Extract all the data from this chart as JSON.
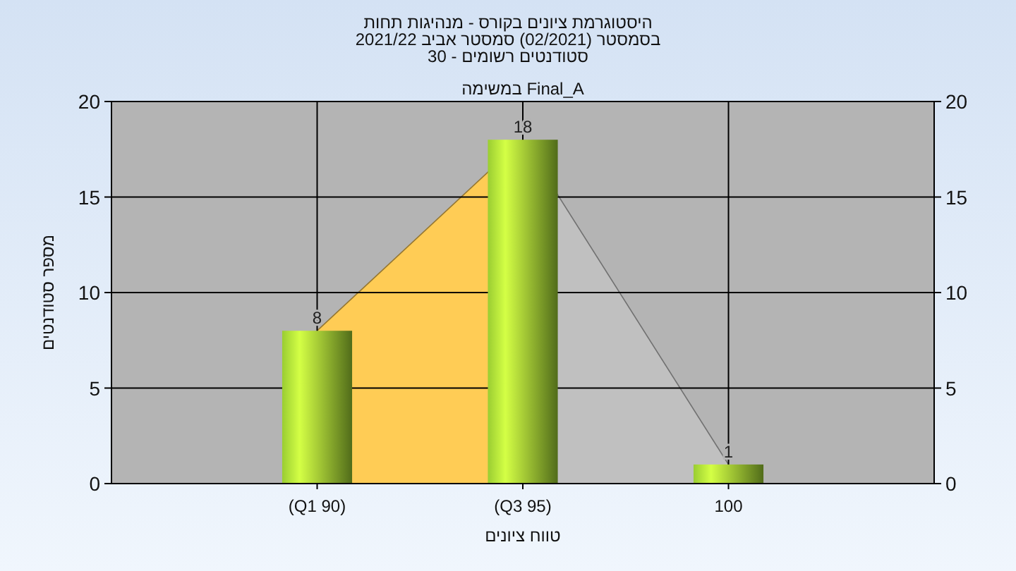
{
  "chart_data": {
    "type": "bar",
    "title": "היסטוגרמת ציונים בקורס - מנהיגות תחות\nבסמסטר  (02/2021)  סמסטר אביב 2021/22\nסטודנטים רשומים - 30",
    "xlabel": "טווח ציונים",
    "ylabel": "מספר סטודנטים",
    "annotations": [
      "במשימה Final_A"
    ],
    "categories": [
      null,
      "(Q1 90)",
      "(Q3 95)",
      "100",
      null
    ],
    "series": [
      {
        "type": "area",
        "color": "#ffcc55",
        "values": [
          null,
          8,
          18,
          null,
          null
        ]
      },
      {
        "type": "area",
        "color": "#c0c0c0",
        "values": [
          null,
          null,
          18,
          1,
          null
        ]
      },
      {
        "color": "#9acd32",
        "values": [
          null,
          8,
          18,
          1,
          null
        ],
        "value_labels": [
          null,
          "8",
          "18",
          "1",
          null
        ]
      }
    ],
    "ylim": [
      0,
      20
    ],
    "yticks": [
      0,
      5,
      10,
      15,
      20
    ],
    "y2lim": [
      0,
      20
    ],
    "y2ticks": [
      0,
      5,
      10,
      15,
      20
    ],
    "grid": true
  }
}
